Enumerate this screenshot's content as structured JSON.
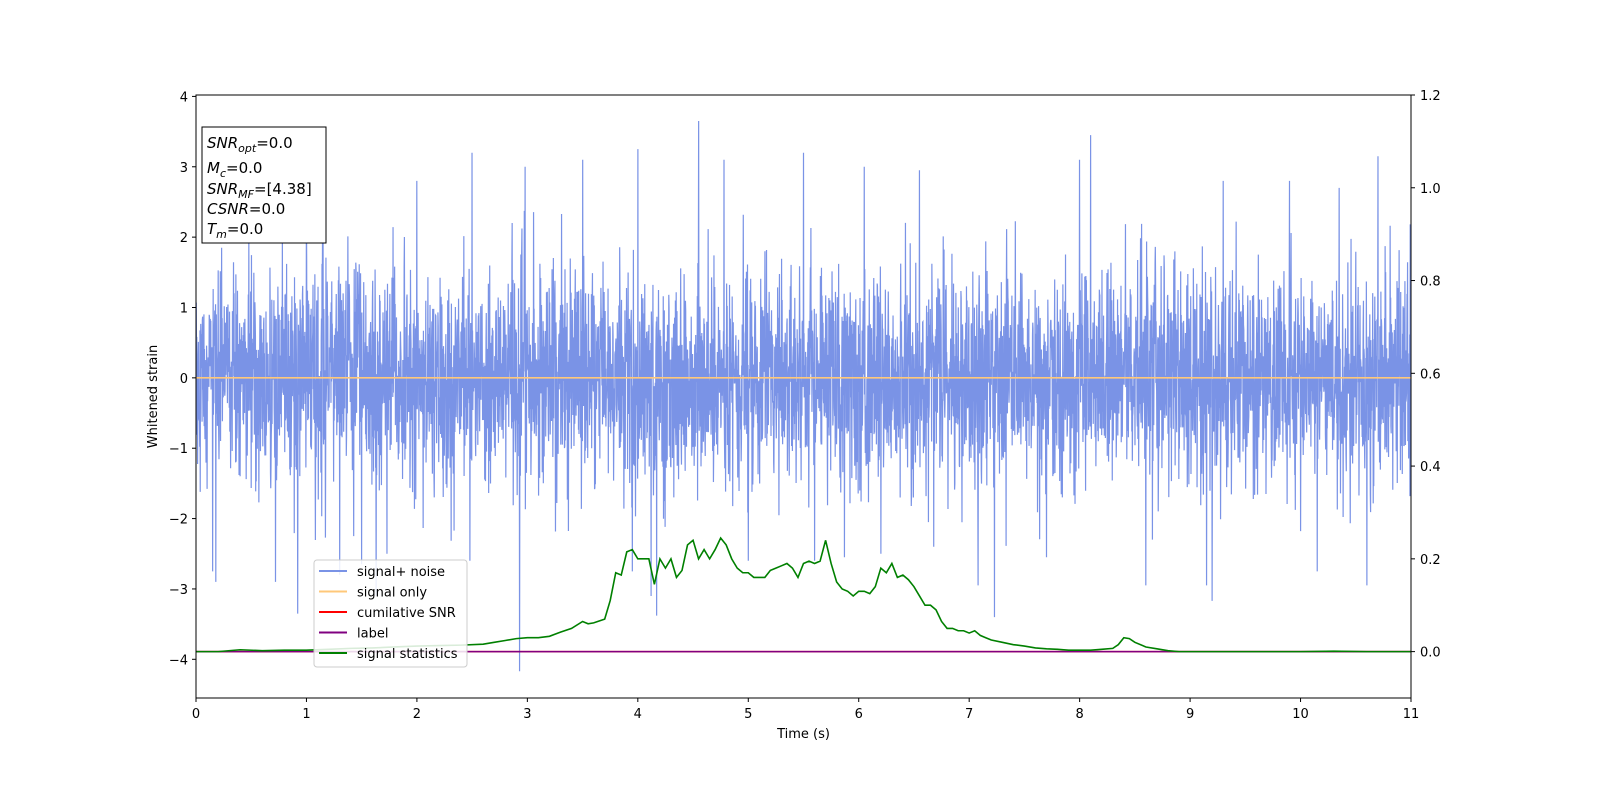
{
  "chart_data": {
    "type": "line",
    "xlabel": "Time (s)",
    "ylabel": "Whitened strain",
    "xlim": [
      0,
      11
    ],
    "ylim": [
      -4.55,
      4.02
    ],
    "ylim_right": [
      -0.1,
      1.2
    ],
    "x_ticks": [
      "0",
      "1",
      "2",
      "3",
      "4",
      "5",
      "6",
      "7",
      "8",
      "9",
      "10",
      "11"
    ],
    "y_ticks": [
      "−4",
      "−3",
      "−2",
      "−1",
      "0",
      "1",
      "2",
      "3",
      "4"
    ],
    "y_ticks_values": [
      -4,
      -3,
      -2,
      -1,
      0,
      1,
      2,
      3,
      4
    ],
    "y_right_ticks": [
      "0.0",
      "0.2",
      "0.4",
      "0.6",
      "0.8",
      "1.0",
      "1.2"
    ],
    "y_right_ticks_values": [
      0,
      0.2,
      0.4,
      0.6,
      0.8,
      1.0,
      1.2
    ],
    "grid": false,
    "legend_position": "lower-left",
    "series": [
      {
        "name": "signal+ noise",
        "color": "#7a93e6",
        "axis": "left",
        "kind": "noise",
        "noise_sigma": 0.75,
        "spikes": [
          [
            0.15,
            -2.75
          ],
          [
            0.18,
            -2.9
          ],
          [
            0.72,
            -2.9
          ],
          [
            0.92,
            -3.35
          ],
          [
            1.0,
            2.5
          ],
          [
            1.15,
            2.4
          ],
          [
            1.3,
            -2.8
          ],
          [
            1.5,
            -2.65
          ],
          [
            1.63,
            -3.1
          ],
          [
            1.73,
            -2.5
          ],
          [
            2.0,
            2.8
          ],
          [
            2.5,
            3.2
          ],
          [
            2.48,
            -2.6
          ],
          [
            2.93,
            -4.17
          ],
          [
            2.98,
            3.0
          ],
          [
            3.5,
            3.1
          ],
          [
            3.95,
            -2.75
          ],
          [
            4.0,
            3.25
          ],
          [
            4.12,
            -3.1
          ],
          [
            4.17,
            -3.38
          ],
          [
            4.55,
            3.65
          ],
          [
            4.78,
            3.1
          ],
          [
            5.0,
            -2.6
          ],
          [
            5.5,
            3.2
          ],
          [
            5.6,
            -2.6
          ],
          [
            5.87,
            -2.55
          ],
          [
            6.05,
            3.0
          ],
          [
            6.2,
            -2.5
          ],
          [
            6.55,
            2.95
          ],
          [
            6.68,
            -2.4
          ],
          [
            7.08,
            -2.95
          ],
          [
            7.23,
            -3.4
          ],
          [
            7.7,
            -2.55
          ],
          [
            8.1,
            3.45
          ],
          [
            8.0,
            3.1
          ],
          [
            8.6,
            -2.95
          ],
          [
            9.15,
            -2.95
          ],
          [
            9.2,
            -3.17
          ],
          [
            9.3,
            2.8
          ],
          [
            9.9,
            2.8
          ],
          [
            10.15,
            -2.75
          ],
          [
            10.35,
            2.7
          ],
          [
            10.6,
            -2.95
          ],
          [
            10.7,
            3.15
          ]
        ]
      },
      {
        "name": "signal only",
        "color": "#ffc87a",
        "axis": "left",
        "kind": "flat",
        "value": 0
      },
      {
        "name": "cumilative SNR",
        "color": "#ff0000",
        "axis": "right",
        "kind": "flat",
        "value": 0
      },
      {
        "name": "label",
        "color": "#800080",
        "axis": "right",
        "kind": "flat",
        "value": 0
      },
      {
        "name": "signal statistics",
        "color": "#008000",
        "axis": "right",
        "kind": "line",
        "x": [
          0,
          0.2,
          0.4,
          0.6,
          0.8,
          1.0,
          1.2,
          1.4,
          1.6,
          1.8,
          2.0,
          2.2,
          2.4,
          2.6,
          2.7,
          2.8,
          2.9,
          3.0,
          3.1,
          3.2,
          3.3,
          3.4,
          3.5,
          3.55,
          3.6,
          3.7,
          3.75,
          3.8,
          3.85,
          3.9,
          3.95,
          4.0,
          4.05,
          4.1,
          4.15,
          4.2,
          4.25,
          4.3,
          4.35,
          4.4,
          4.45,
          4.5,
          4.55,
          4.6,
          4.65,
          4.7,
          4.75,
          4.8,
          4.85,
          4.9,
          4.95,
          5.0,
          5.05,
          5.1,
          5.15,
          5.2,
          5.25,
          5.3,
          5.35,
          5.4,
          5.45,
          5.5,
          5.55,
          5.6,
          5.65,
          5.7,
          5.75,
          5.8,
          5.85,
          5.9,
          5.95,
          6.0,
          6.05,
          6.1,
          6.15,
          6.2,
          6.25,
          6.3,
          6.35,
          6.4,
          6.45,
          6.5,
          6.55,
          6.6,
          6.65,
          6.7,
          6.75,
          6.8,
          6.85,
          6.9,
          6.95,
          7.0,
          7.05,
          7.1,
          7.15,
          7.2,
          7.3,
          7.4,
          7.5,
          7.6,
          7.7,
          7.8,
          7.9,
          8.0,
          8.1,
          8.2,
          8.3,
          8.35,
          8.4,
          8.45,
          8.5,
          8.6,
          8.7,
          8.8,
          8.9,
          9.0,
          9.2,
          9.5,
          10.0,
          10.3,
          10.6,
          11.0
        ],
        "values": [
          0,
          0.0,
          0.004,
          0.002,
          0.003,
          0.003,
          0.005,
          0.007,
          0.008,
          0.01,
          0.012,
          0.013,
          0.014,
          0.016,
          0.02,
          0.024,
          0.028,
          0.03,
          0.03,
          0.033,
          0.042,
          0.05,
          0.065,
          0.06,
          0.062,
          0.07,
          0.11,
          0.17,
          0.165,
          0.215,
          0.22,
          0.2,
          0.2,
          0.2,
          0.145,
          0.2,
          0.18,
          0.2,
          0.16,
          0.175,
          0.23,
          0.24,
          0.2,
          0.22,
          0.2,
          0.22,
          0.245,
          0.23,
          0.2,
          0.18,
          0.17,
          0.17,
          0.16,
          0.16,
          0.16,
          0.175,
          0.18,
          0.185,
          0.19,
          0.18,
          0.16,
          0.19,
          0.195,
          0.19,
          0.195,
          0.24,
          0.19,
          0.15,
          0.135,
          0.13,
          0.12,
          0.13,
          0.13,
          0.125,
          0.14,
          0.18,
          0.17,
          0.19,
          0.16,
          0.165,
          0.155,
          0.14,
          0.12,
          0.1,
          0.1,
          0.09,
          0.065,
          0.05,
          0.05,
          0.045,
          0.045,
          0.04,
          0.045,
          0.035,
          0.03,
          0.025,
          0.02,
          0.015,
          0.012,
          0.008,
          0.006,
          0.005,
          0.003,
          0.003,
          0.003,
          0.005,
          0.007,
          0.015,
          0.03,
          0.028,
          0.02,
          0.01,
          0.006,
          0.002,
          0.0,
          0.0,
          0.0,
          0.0,
          0.0,
          0.001,
          0.0,
          0.0
        ]
      }
    ]
  },
  "info_box": {
    "line1": {
      "sym": "SNR",
      "sub": "opt",
      "rest": "=0.0"
    },
    "line2": {
      "sym": "M",
      "sub": "c",
      "rest": "=0.0"
    },
    "line3": {
      "sym": "SNR",
      "sub": "MF",
      "rest": "=[4.38]"
    },
    "line4": {
      "sym": "CSNR",
      "sub": "",
      "rest": "=0.0"
    },
    "line5": {
      "sym": "T",
      "sub": "m",
      "rest": "=0.0"
    }
  }
}
